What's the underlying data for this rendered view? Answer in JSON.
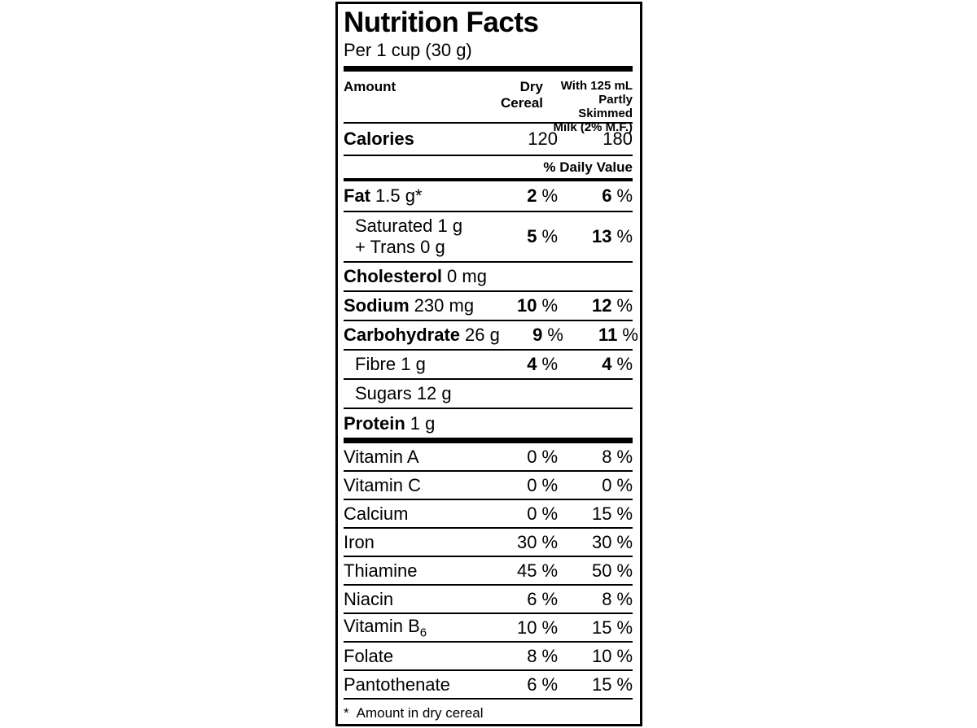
{
  "colors": {
    "ink": "#000000",
    "background": "#ffffff"
  },
  "pct_sign": "%",
  "header": {
    "title": "Nutrition Facts",
    "serving": "Per 1 cup (30 g)",
    "columns": {
      "amount": "Amount",
      "dry": "Dry Cereal",
      "milk_line1": "With 125 mL",
      "milk_line2": "Partly Skimmed",
      "milk_line3": "Milk (2% M.F.)"
    },
    "daily_value": "% Daily Value"
  },
  "calories": {
    "label": "Calories",
    "dry": "120",
    "milk": "180"
  },
  "nutrients": [
    {
      "name": "Fat",
      "rest": "1.5 g*",
      "dry": "2",
      "milk": "6"
    },
    {
      "line1": "Saturated 1 g",
      "line2": "+ Trans 0 g",
      "dry": "5",
      "milk": "13"
    },
    {
      "name": "Cholesterol",
      "rest": "0 mg"
    },
    {
      "name": "Sodium",
      "rest": "230 mg",
      "dry": "10",
      "milk": "12"
    },
    {
      "name": "Carbohydrate",
      "rest": "26 g",
      "dry": "9",
      "milk": "11"
    },
    {
      "name": "Fibre 1 g",
      "dry": "4",
      "milk": "4"
    },
    {
      "name": "Sugars 12 g"
    },
    {
      "name": "Protein",
      "rest": "1 g"
    }
  ],
  "vitamins": [
    {
      "name": "Vitamin A",
      "dry": "0",
      "milk": "8"
    },
    {
      "name": "Vitamin C",
      "dry": "0",
      "milk": "0"
    },
    {
      "name": "Calcium",
      "dry": "0",
      "milk": "15"
    },
    {
      "name": "Iron",
      "dry": "30",
      "milk": "30"
    },
    {
      "name": "Thiamine",
      "dry": "45",
      "milk": "50"
    },
    {
      "name": "Niacin",
      "dry": "6",
      "milk": "8"
    },
    {
      "name": "Vitamin B",
      "sub": "6",
      "dry": "10",
      "milk": "15"
    },
    {
      "name": "Folate",
      "dry": "8",
      "milk": "10"
    },
    {
      "name": "Pantothenate",
      "dry": "6",
      "milk": "15"
    }
  ],
  "footnote": {
    "marker": "*",
    "text": "Amount in dry cereal"
  }
}
